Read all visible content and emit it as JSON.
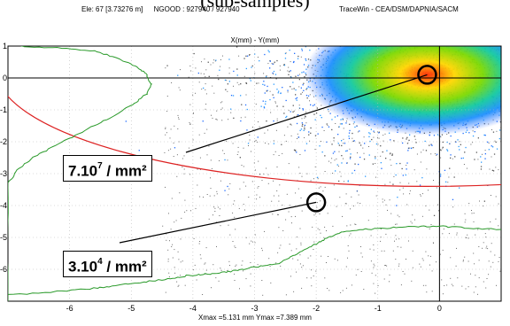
{
  "header": {
    "title": "(sub-samples)",
    "element": "Ele: 67 [3.73276 m]",
    "ngood": "NGOOD : 927940 / 927940",
    "credit": "TraceWin - CEA/DSM/DAPNIA/SACM"
  },
  "chart_data": {
    "type": "scatter",
    "title": "X(mm) - Y(mm)",
    "xlabel": "",
    "ylabel": "",
    "xlim": [
      -7,
      1
    ],
    "ylim": [
      -7,
      1
    ],
    "xticks": [
      "-6",
      "-5",
      "-4",
      "-3",
      "-2",
      "-1",
      "0"
    ],
    "yticks": [
      "1",
      "0",
      "-1",
      "-2",
      "-3",
      "-4",
      "-5",
      "-6"
    ],
    "footer": "Xmax =5.131 mm  Ymax =7.389 mm",
    "core_center": [
      -0.2,
      0.1
    ],
    "ellipse": {
      "cx": -0.2,
      "cy": 0.3,
      "rx": 7,
      "ry": 3.7,
      "color": "#dd2222"
    },
    "y_profile_curve": [
      [
        -7.0,
        -6.8
      ],
      [
        -6.2,
        -6.7
      ],
      [
        -5.6,
        -6.6
      ],
      [
        -5.2,
        -6.5
      ],
      [
        -4.8,
        -6.4
      ],
      [
        -4.4,
        -6.3
      ],
      [
        -4.1,
        -6.2
      ],
      [
        -3.8,
        -6.15
      ],
      [
        -3.5,
        -6.1
      ],
      [
        -3.2,
        -6.0
      ],
      [
        -2.9,
        -5.9
      ],
      [
        -2.6,
        -5.8
      ],
      [
        -2.3,
        -5.5
      ],
      [
        -2.0,
        -5.2
      ],
      [
        -1.8,
        -5.0
      ],
      [
        -1.6,
        -4.85
      ],
      [
        -1.2,
        -4.75
      ],
      [
        -0.8,
        -4.7
      ],
      [
        -0.4,
        -4.65
      ],
      [
        0.0,
        -4.65
      ],
      [
        0.4,
        -4.7
      ],
      [
        1.0,
        -4.75
      ]
    ],
    "x_profile_curve": [
      [
        -6.8,
        1.0
      ],
      [
        -6.2,
        0.95
      ],
      [
        -5.6,
        0.85
      ],
      [
        -5.2,
        0.6
      ],
      [
        -4.9,
        0.35
      ],
      [
        -4.75,
        0.1
      ],
      [
        -4.68,
        -0.2
      ],
      [
        -4.75,
        -0.5
      ],
      [
        -4.95,
        -0.8
      ],
      [
        -5.2,
        -1.1
      ],
      [
        -5.6,
        -1.5
      ],
      [
        -6.0,
        -1.9
      ],
      [
        -6.3,
        -2.2
      ],
      [
        -6.6,
        -2.5
      ],
      [
        -6.85,
        -2.9
      ],
      [
        -7.0,
        -3.3
      ],
      [
        -7.0,
        -7.0
      ]
    ],
    "annotations": [
      {
        "label_main": "7.10",
        "label_sup": "7",
        "label_unit": " / mm²",
        "target": [
          -0.2,
          0.1
        ]
      },
      {
        "label_main": "3.10",
        "label_sup": "4",
        "label_unit": " / mm²",
        "target": [
          -2.0,
          -3.9
        ]
      }
    ],
    "colors": {
      "axes": "#000000",
      "profile": "#2a9a2a",
      "grid": "#b8b8b8"
    }
  }
}
